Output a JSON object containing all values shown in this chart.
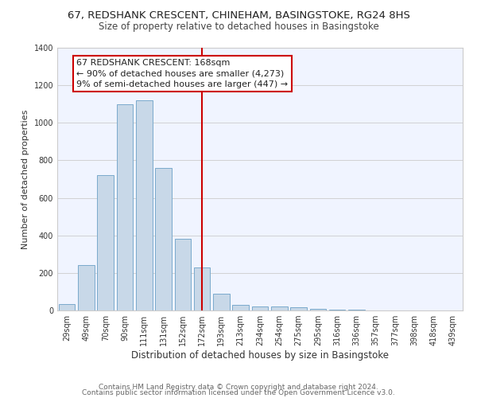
{
  "title": "67, REDSHANK CRESCENT, CHINEHAM, BASINGSTOKE, RG24 8HS",
  "subtitle": "Size of property relative to detached houses in Basingstoke",
  "xlabel": "Distribution of detached houses by size in Basingstoke",
  "ylabel": "Number of detached properties",
  "bar_labels": [
    "29sqm",
    "49sqm",
    "70sqm",
    "90sqm",
    "111sqm",
    "131sqm",
    "152sqm",
    "172sqm",
    "193sqm",
    "213sqm",
    "234sqm",
    "254sqm",
    "275sqm",
    "295sqm",
    "316sqm",
    "336sqm",
    "357sqm",
    "377sqm",
    "398sqm",
    "418sqm",
    "439sqm"
  ],
  "bar_heights": [
    35,
    240,
    720,
    1100,
    1120,
    760,
    380,
    230,
    90,
    30,
    20,
    20,
    15,
    10,
    5,
    3,
    2,
    2,
    1,
    1,
    1
  ],
  "bar_color": "#c8d8e8",
  "bar_edge_color": "#7aaacc",
  "vline_x": 7,
  "vline_color": "#cc0000",
  "annotation_title": "67 REDSHANK CRESCENT: 168sqm",
  "annotation_line1": "← 90% of detached houses are smaller (4,273)",
  "annotation_line2": "9% of semi-detached houses are larger (447) →",
  "annotation_box_color": "#ffffff",
  "annotation_box_edge": "#cc0000",
  "ylim": [
    0,
    1400
  ],
  "yticks": [
    0,
    200,
    400,
    600,
    800,
    1000,
    1200,
    1400
  ],
  "footer1": "Contains HM Land Registry data © Crown copyright and database right 2024.",
  "footer2": "Contains public sector information licensed under the Open Government Licence v3.0.",
  "title_fontsize": 9.5,
  "subtitle_fontsize": 8.5,
  "xlabel_fontsize": 8.5,
  "ylabel_fontsize": 8,
  "tick_fontsize": 7,
  "annotation_fontsize": 8,
  "footer_fontsize": 6.5
}
